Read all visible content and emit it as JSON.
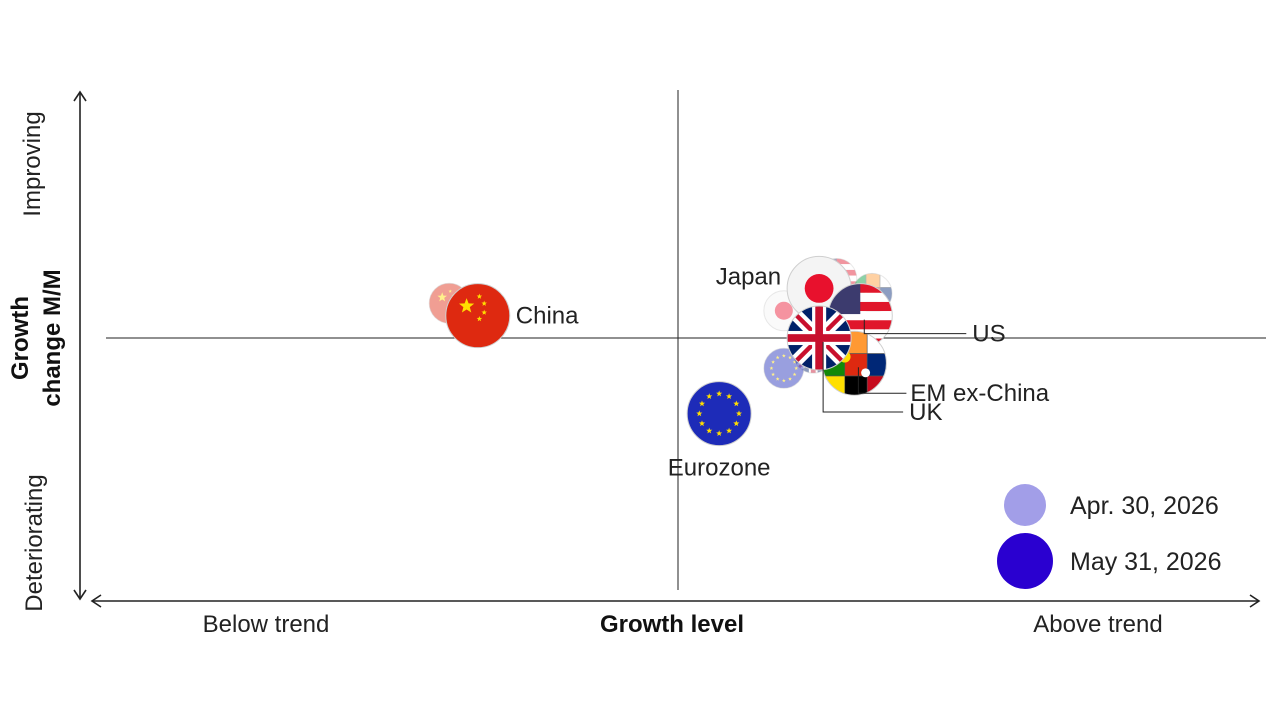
{
  "chart_data": {
    "type": "scatter",
    "title": "",
    "x_axis": {
      "label": "Growth level",
      "low_label": "Below trend",
      "high_label": "Above trend",
      "range": [
        -100,
        100
      ]
    },
    "y_axis": {
      "label_line1": "Growth",
      "label_line2": "change M/M",
      "low_label": "Deteriorating",
      "high_label": "Improving",
      "range": [
        -100,
        100
      ]
    },
    "grid": false,
    "legend": {
      "position": "bottom-right",
      "entries": [
        {
          "label": "Apr. 30, 2026",
          "color": "#a29ee8"
        },
        {
          "label": "May 31, 2026",
          "color": "#2a00d0"
        }
      ]
    },
    "series": [
      {
        "name": "Apr. 30, 2026",
        "points": [
          {
            "label": "China",
            "x": -40,
            "y": 14,
            "icon": "china-flag-icon"
          },
          {
            "label": "Japan",
            "x": 18,
            "y": 11,
            "icon": "japan-flag-icon"
          },
          {
            "label": "US",
            "x": 27,
            "y": 24,
            "icon": "us-flag-icon"
          },
          {
            "label": "EM ex-China",
            "x": 33,
            "y": 18,
            "icon": "em-flags-icon"
          },
          {
            "label": "UK",
            "x": 23,
            "y": -6,
            "icon": "uk-flag-icon"
          },
          {
            "label": "Eurozone",
            "x": 18,
            "y": -12,
            "icon": "eu-flag-icon"
          }
        ]
      },
      {
        "name": "May 31, 2026",
        "points": [
          {
            "label": "China",
            "x": -35,
            "y": 9,
            "icon": "china-flag-icon"
          },
          {
            "label": "Japan",
            "x": 24,
            "y": 20,
            "icon": "japan-flag-icon"
          },
          {
            "label": "US",
            "x": 31,
            "y": 9,
            "icon": "us-flag-icon"
          },
          {
            "label": "EM ex-China",
            "x": 30,
            "y": -10,
            "icon": "em-flags-icon"
          },
          {
            "label": "UK",
            "x": 24,
            "y": 0,
            "icon": "uk-flag-icon"
          },
          {
            "label": "Eurozone",
            "x": 7,
            "y": -30,
            "icon": "eu-flag-icon"
          }
        ]
      }
    ],
    "annotations": [
      {
        "text": "China",
        "for": "China"
      },
      {
        "text": "Japan",
        "for": "Japan"
      },
      {
        "text": "US",
        "for": "US"
      },
      {
        "text": "EM ex-China",
        "for": "EM ex-China"
      },
      {
        "text": "UK",
        "for": "UK"
      },
      {
        "text": "Eurozone",
        "for": "Eurozone"
      }
    ]
  }
}
